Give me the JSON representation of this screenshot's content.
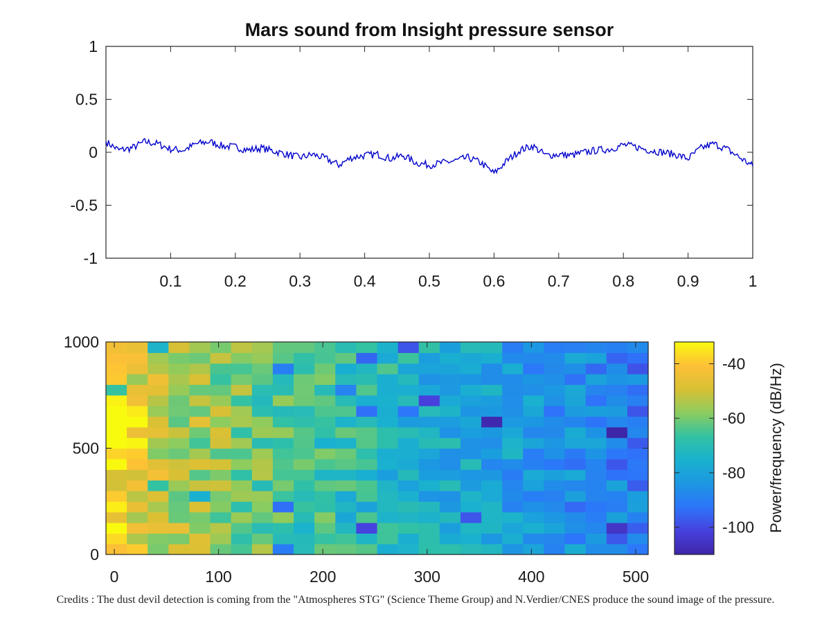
{
  "figure": {
    "credits": "Credits : The dust devil detection is coming from the \"Atmospheres STG\"  (Science Theme Group) and N.Verdier/CNES produce the sound image of the pressure."
  },
  "chart_data": [
    {
      "type": "line",
      "title": "Mars sound from Insight pressure sensor",
      "xlim": [
        0,
        1
      ],
      "ylim": [
        -1,
        1
      ],
      "xticks": [
        0.1,
        0.2,
        0.3,
        0.4,
        0.5,
        0.6,
        0.7,
        0.8,
        0.9,
        1
      ],
      "xtick_labels": [
        "0.1",
        "0.2",
        "0.3",
        "0.4",
        "0.5",
        "0.6",
        "0.7",
        "0.8",
        "0.9",
        "1"
      ],
      "yticks": [
        1,
        0.5,
        0,
        -0.5,
        -1
      ],
      "ytick_labels": [
        "1",
        "0.5",
        "0",
        "-0.5",
        "-1"
      ],
      "line_color": "#0000cc",
      "grid": false,
      "series": [
        {
          "x": [
            0,
            0.02,
            0.04,
            0.06,
            0.08,
            0.1,
            0.12,
            0.14,
            0.16,
            0.18,
            0.2,
            0.22,
            0.24,
            0.26,
            0.28,
            0.3,
            0.32,
            0.34,
            0.36,
            0.38,
            0.4,
            0.42,
            0.44,
            0.46,
            0.48,
            0.5,
            0.52,
            0.54,
            0.56,
            0.58,
            0.6,
            0.62,
            0.64,
            0.66,
            0.68,
            0.7,
            0.72,
            0.74,
            0.76,
            0.78,
            0.8,
            0.82,
            0.84,
            0.86,
            0.88,
            0.9,
            0.92,
            0.94,
            0.96,
            0.98,
            1
          ],
          "y": [
            0.1,
            0.02,
            0.04,
            0.1,
            0.08,
            0.03,
            0.02,
            0.08,
            0.1,
            0.06,
            0.05,
            0.02,
            0.04,
            0.01,
            -0.02,
            -0.05,
            -0.02,
            -0.06,
            -0.12,
            -0.05,
            -0.03,
            -0.02,
            -0.06,
            -0.03,
            -0.1,
            -0.12,
            -0.1,
            -0.08,
            -0.05,
            -0.1,
            -0.2,
            -0.08,
            0.02,
            0.06,
            -0.03,
            -0.02,
            -0.03,
            0.0,
            0.02,
            0.03,
            0.07,
            0.05,
            0.02,
            0.0,
            -0.02,
            -0.06,
            0.04,
            0.08,
            0.03,
            -0.05,
            -0.13
          ]
        }
      ]
    },
    {
      "type": "heatmap",
      "xlim": [
        -8,
        512
      ],
      "ylim": [
        0,
        1000
      ],
      "xticks": [
        0,
        100,
        200,
        300,
        400,
        500
      ],
      "xtick_labels": [
        "0",
        "100",
        "200",
        "300",
        "400",
        "500"
      ],
      "yticks": [
        0,
        500,
        1000
      ],
      "ytick_labels": [
        "0",
        "500",
        "1000"
      ],
      "columns": 26,
      "rows": 20,
      "colorbar": {
        "label": "Power/frequency (dB/Hz)",
        "range": [
          -110,
          -32
        ],
        "ticks": [
          -40,
          -60,
          -80,
          -100
        ],
        "tick_labels": [
          "-40",
          "-60",
          "-80",
          "-100"
        ],
        "colormap": [
          "#3e26a8",
          "#4741de",
          "#2d75fa",
          "#1c97e2",
          "#1ab1cf",
          "#33c2a2",
          "#8ccc5f",
          "#d9c034",
          "#fdc037",
          "#f9fb0e"
        ]
      }
    }
  ]
}
